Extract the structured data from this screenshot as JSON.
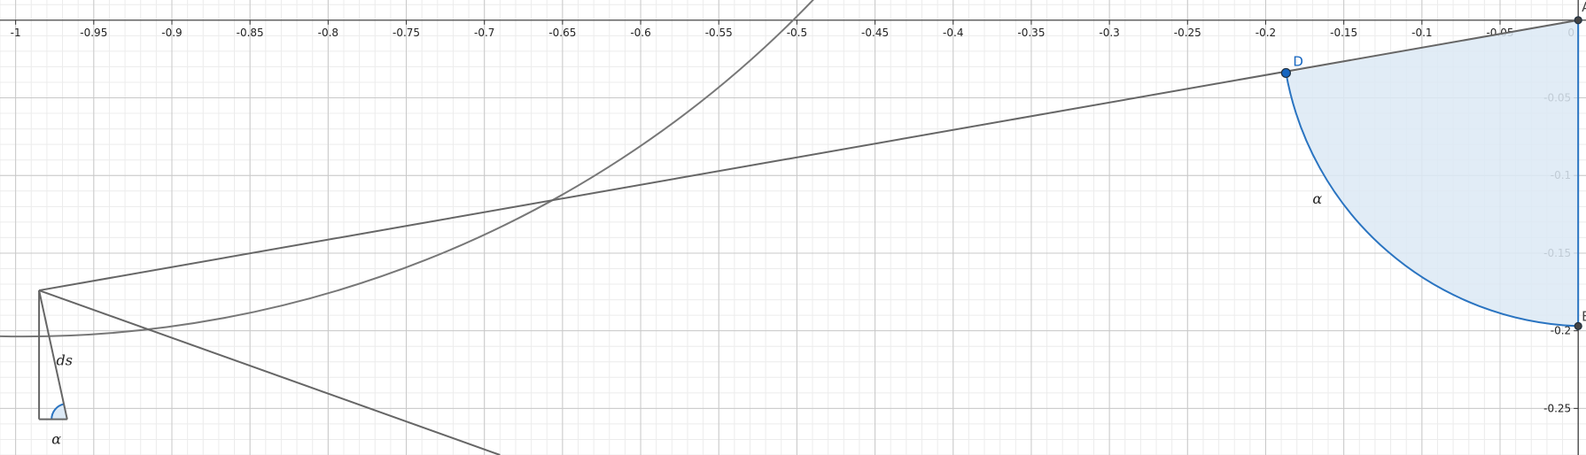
{
  "chart_data": {
    "type": "scatter",
    "grid": true,
    "minor_grid": true,
    "xlim": [
      -1.01,
      0.005
    ],
    "ylim": [
      -0.28,
      0.013
    ],
    "x_ticks": [
      -1,
      -0.95,
      -0.9,
      -0.85,
      -0.8,
      -0.75,
      -0.7,
      -0.65,
      -0.6,
      -0.55,
      -0.5,
      -0.45,
      -0.4,
      -0.35,
      -0.3,
      -0.25,
      -0.2,
      -0.15,
      -0.1,
      -0.05,
      0
    ],
    "y_ticks": [
      -0.05,
      -0.1,
      -0.15,
      -0.2,
      -0.25
    ],
    "x_tick_labels": [
      "-1",
      "-0.95",
      "-0.9",
      "-0.85",
      "-0.8",
      "-0.75",
      "-0.7",
      "-0.65",
      "-0.6",
      "-0.55",
      "-0.5",
      "-0.45",
      "-0.4",
      "-0.35",
      "-0.3",
      "-0.25",
      "-0.2",
      "-0.15",
      "-0.1",
      "-0.05",
      "0"
    ],
    "y_tick_labels": [
      "-0.05",
      "-0.1",
      "-0.15",
      "-0.2",
      "-0.25"
    ],
    "points": [
      {
        "label": "A",
        "x": 0,
        "y": 0,
        "color": "#444444"
      },
      {
        "label": "D",
        "x": -0.187,
        "y": -0.034,
        "color": "#1565c0"
      },
      {
        "label": "E",
        "x": 0,
        "y": -0.197,
        "color": "#444444"
      }
    ],
    "lines": [
      {
        "from": [
          0,
          0
        ],
        "to": [
          -0.985,
          -0.174
        ],
        "color": "#666666"
      },
      {
        "from": [
          -0.985,
          -0.174
        ],
        "to": [
          -0.69,
          -0.28
        ],
        "color": "#666666"
      },
      {
        "from": [
          -0.985,
          -0.174
        ],
        "to": [
          -0.985,
          -0.257
        ],
        "color": "#666666"
      },
      {
        "from": [
          -0.985,
          -0.257
        ],
        "to": [
          -0.967,
          -0.257
        ],
        "color": "#666666"
      },
      {
        "from": [
          -0.985,
          -0.174
        ],
        "to": [
          -0.967,
          -0.257
        ],
        "color": "#666666"
      }
    ],
    "curve": {
      "center": [
        -0.995,
        0.5
      ],
      "radius": 0.7,
      "color": "#777777"
    },
    "sector": {
      "center": [
        0,
        0
      ],
      "radius": 0.197,
      "start_point": "D",
      "end_point": "E",
      "fill": "#dce9f5",
      "stroke": "#2a74c1"
    },
    "angle_marker": {
      "vertex": [
        -0.967,
        -0.257
      ],
      "radius": 0.01,
      "fill": "#dce9f5",
      "stroke": "#2a74c1"
    },
    "labels": [
      {
        "text": "α",
        "x": -0.17,
        "y": -0.118
      },
      {
        "text": "ds",
        "x": -0.974,
        "y": -0.222
      },
      {
        "text": "α",
        "x": -0.977,
        "y": -0.273
      }
    ]
  }
}
